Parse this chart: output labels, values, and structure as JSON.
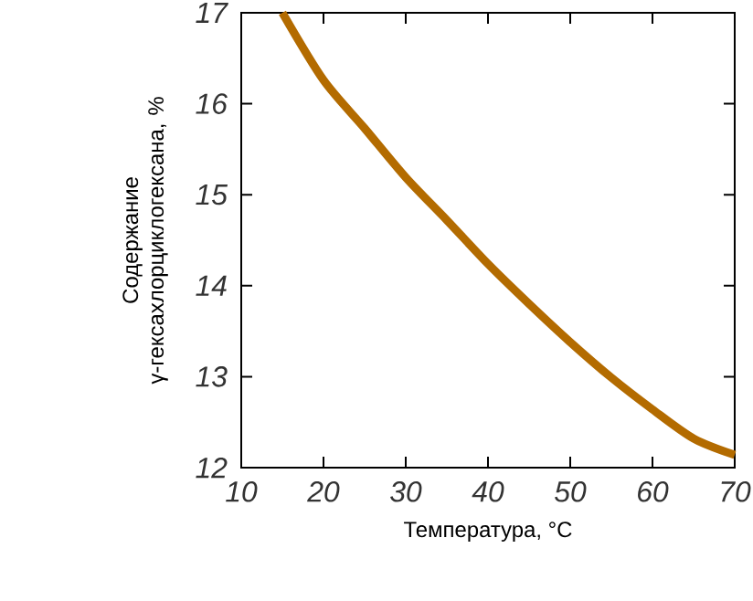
{
  "chart_data": {
    "type": "line",
    "xlabel": "Температура, °C",
    "ylabel": "Содержание\nγ-гексахлорциклогексана, %",
    "x": [
      15,
      20,
      25,
      30,
      35,
      40,
      45,
      50,
      55,
      60,
      65,
      70
    ],
    "series": [
      {
        "color": "#b36b00",
        "values": [
          17.0,
          16.26,
          15.73,
          15.19,
          14.72,
          14.24,
          13.8,
          13.38,
          12.99,
          12.64,
          12.32,
          12.14
        ]
      }
    ],
    "xlim": [
      10,
      70
    ],
    "ylim": [
      12,
      17
    ],
    "xticks": [
      10,
      20,
      30,
      40,
      50,
      60,
      70
    ],
    "yticks": [
      12,
      13,
      14,
      15,
      16,
      17
    ],
    "grid": false,
    "marker": "none",
    "line_style": "solid"
  }
}
